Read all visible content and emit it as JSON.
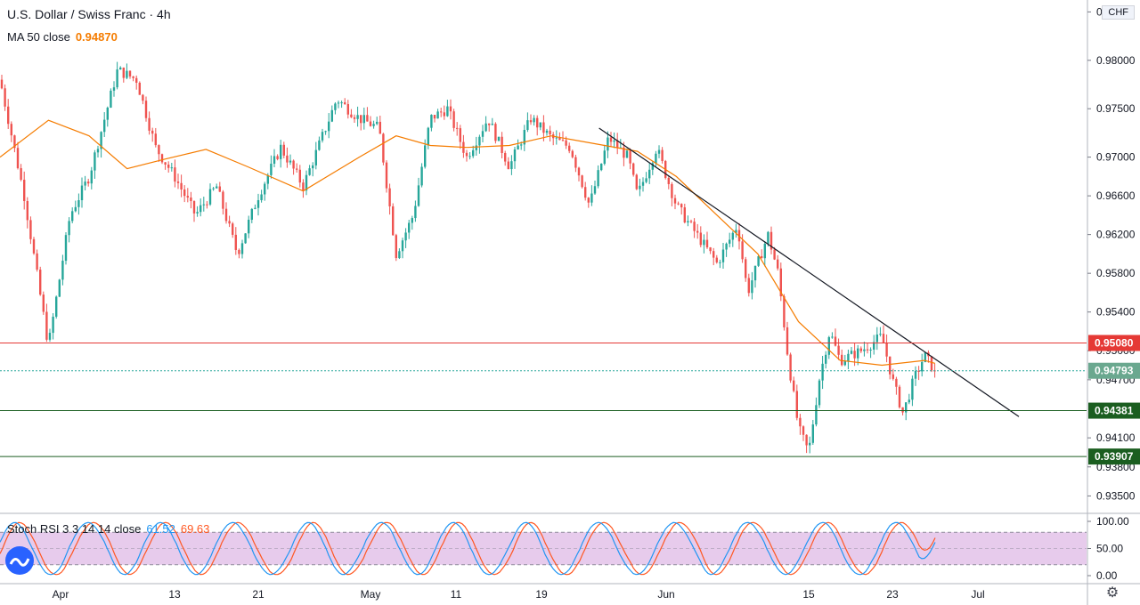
{
  "header": {
    "symbol_title": "U.S. Dollar / Swiss Franc · 4h",
    "ma_label": "MA 50 close",
    "ma_value": "0.94870",
    "stoch_label": "Stoch RSI 3 3 14 14 close",
    "stoch_k_value": "61.52",
    "stoch_d_value": "69.63",
    "currency_badge": "CHF"
  },
  "colors": {
    "up_candle": "#26a69a",
    "down_candle": "#ef5350",
    "ma_line": "#f57c00",
    "resistance": "#e53935",
    "support": "#1b5e20",
    "trendline": "#131722",
    "stoch_k": "#2196f3",
    "stoch_d": "#ff5722",
    "stoch_band": "#e1bee7"
  },
  "chart_data": [
    {
      "type": "candlestick",
      "title": "U.S. Dollar / Swiss Franc · 4h",
      "ylim": [
        0.9332,
        0.98623
      ],
      "y_ticks": [
        "0.98000",
        "0.97500",
        "0.97000",
        "0.96600",
        "0.96200",
        "0.95800",
        "0.95400",
        "0.94100",
        "0.93800",
        "0.93500"
      ],
      "y_ticks_partial": [
        "0.98500",
        "0.95000",
        "0.94700"
      ],
      "x_ticks": [
        "Apr",
        "13",
        "21",
        "May",
        "11",
        "19",
        "Jun",
        "15",
        "23",
        "Jul"
      ],
      "price_path": [
        [
          "Mar 27",
          0.978
        ],
        [
          "Mar 29",
          0.966
        ],
        [
          "Mar 31",
          0.9505
        ],
        [
          "Apr 2",
          0.964
        ],
        [
          "Apr 4",
          0.968
        ],
        [
          "Apr 7",
          0.979
        ],
        [
          "Apr 9",
          0.978
        ],
        [
          "Apr 11",
          0.971
        ],
        [
          "Apr 13",
          0.968
        ],
        [
          "Apr 15",
          0.964
        ],
        [
          "Apr 17",
          0.967
        ],
        [
          "Apr 19",
          0.96
        ],
        [
          "Apr 21",
          0.966
        ],
        [
          "Apr 23",
          0.971
        ],
        [
          "Apr 25",
          0.967
        ],
        [
          "Apr 28",
          0.976
        ],
        [
          "Apr 30",
          0.974
        ],
        [
          "May 2",
          0.973
        ],
        [
          "May 4",
          0.96
        ],
        [
          "May 6",
          0.964
        ],
        [
          "May 8",
          0.974
        ],
        [
          "May 10",
          0.975
        ],
        [
          "May 12",
          0.97
        ],
        [
          "May 14",
          0.974
        ],
        [
          "May 16",
          0.969
        ],
        [
          "May 18",
          0.974
        ],
        [
          "May 20",
          0.972
        ],
        [
          "May 22",
          0.971
        ],
        [
          "May 24",
          0.965
        ],
        [
          "May 26",
          0.972
        ],
        [
          "May 28",
          0.97
        ],
        [
          "May 29",
          0.966
        ],
        [
          "May 31",
          0.971
        ],
        [
          "Jun 2",
          0.965
        ],
        [
          "Jun 4",
          0.962
        ],
        [
          "Jun 6",
          0.959
        ],
        [
          "Jun 8",
          0.963
        ],
        [
          "Jun 9",
          0.956
        ],
        [
          "Jun 11",
          0.962
        ],
        [
          "Jun 12",
          0.958
        ],
        [
          "Jun 13",
          0.949
        ],
        [
          "Jun 14",
          0.942
        ],
        [
          "Jun 15",
          0.9395
        ],
        [
          "Jun 16",
          0.947
        ],
        [
          "Jun 17",
          0.952
        ],
        [
          "Jun 18",
          0.949
        ],
        [
          "Jun 20",
          0.95
        ],
        [
          "Jun 22",
          0.9515
        ],
        [
          "Jun 23",
          0.947
        ],
        [
          "Jun 24",
          0.9435
        ],
        [
          "Jun 25",
          0.947
        ],
        [
          "Jun 26",
          0.9495
        ],
        [
          "Jun 27",
          0.9479
        ]
      ],
      "moving_average": {
        "name": "MA 50 close",
        "last_value": 0.9487,
        "path": [
          [
            "Mar 27",
            0.97
          ],
          [
            "Mar 31",
            0.9738
          ],
          [
            "Apr 4",
            0.9722
          ],
          [
            "Apr 8",
            0.9688
          ],
          [
            "Apr 12",
            0.9698
          ],
          [
            "Apr 16",
            0.9708
          ],
          [
            "Apr 20",
            0.969
          ],
          [
            "Apr 25",
            0.9665
          ],
          [
            "Apr 30",
            0.97
          ],
          [
            "May 4",
            0.9722
          ],
          [
            "May 8",
            0.9712
          ],
          [
            "May 12",
            0.971
          ],
          [
            "May 16",
            0.9712
          ],
          [
            "May 20",
            0.9722
          ],
          [
            "May 25",
            0.9713
          ],
          [
            "May 29",
            0.9706
          ],
          [
            "Jun 2",
            0.968
          ],
          [
            "Jun 6",
            0.964
          ],
          [
            "Jun 10",
            0.96
          ],
          [
            "Jun 14",
            0.953
          ],
          [
            "Jun 18",
            0.949
          ],
          [
            "Jun 22",
            0.9485
          ],
          [
            "Jun 26",
            0.949
          ],
          [
            "Jun 27",
            0.9487
          ]
        ]
      },
      "trendline": {
        "start": [
          "May 25",
          0.973
        ],
        "end": [
          "Jul 5",
          0.9432
        ]
      },
      "horizontal_levels": [
        {
          "name": "resistance",
          "value": 0.9508,
          "label": "0.95080"
        },
        {
          "name": "current-price",
          "value": 0.94793,
          "label": "0.94793",
          "style": "dotted"
        },
        {
          "name": "support-1",
          "value": 0.94381,
          "label": "0.94381"
        },
        {
          "name": "support-2",
          "value": 0.93907,
          "label": "0.93907"
        }
      ]
    },
    {
      "type": "line",
      "title": "Stoch RSI 3 3 14 14 close",
      "ylim": [
        0,
        100
      ],
      "y_ticks": [
        "100.00",
        "50.00",
        "0.00"
      ],
      "band": [
        20,
        80
      ],
      "series": [
        {
          "name": "K",
          "last_value": 61.52
        },
        {
          "name": "D",
          "last_value": 69.63
        }
      ]
    }
  ]
}
